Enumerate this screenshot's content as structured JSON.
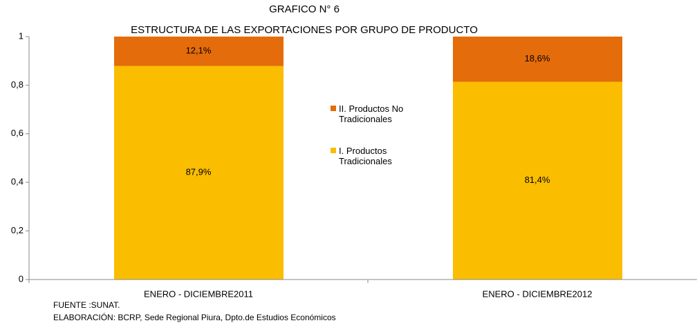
{
  "chart_data": {
    "type": "stacked_bar",
    "title": "GRAFICO N° 6",
    "subtitle": "ESTRUCTURA DE LAS EXPORTACIONES POR GRUPO DE PRODUCTO",
    "categories": [
      "ENERO - DICIEMBRE2011",
      "ENERO - DICIEMBRE2012"
    ],
    "series": [
      {
        "name": "I. Productos Tradicionales",
        "color": "#fbbd00",
        "values": [
          0.879,
          0.814
        ],
        "value_labels": [
          "87,9%",
          "81,4%"
        ]
      },
      {
        "name": "II. Productos No Tradicionales",
        "color": "#e46c0a",
        "values": [
          0.121,
          0.186
        ],
        "value_labels": [
          "12,1%",
          "18,6%"
        ]
      }
    ],
    "ylim": [
      0,
      1
    ],
    "yticks": [
      0,
      {
        "value": 0.2,
        "label": "0,2"
      },
      {
        "value": 0.4,
        "label": "0,4"
      },
      {
        "value": 0.6,
        "label": "0,6"
      },
      {
        "value": 0.8,
        "label": "0,8"
      },
      1
    ],
    "notes": [
      "FUENTE :SUNAT.",
      "ELABORACIÓN: BCRP, Sede Regional Piura, Dpto.de Estudios Económicos"
    ]
  }
}
